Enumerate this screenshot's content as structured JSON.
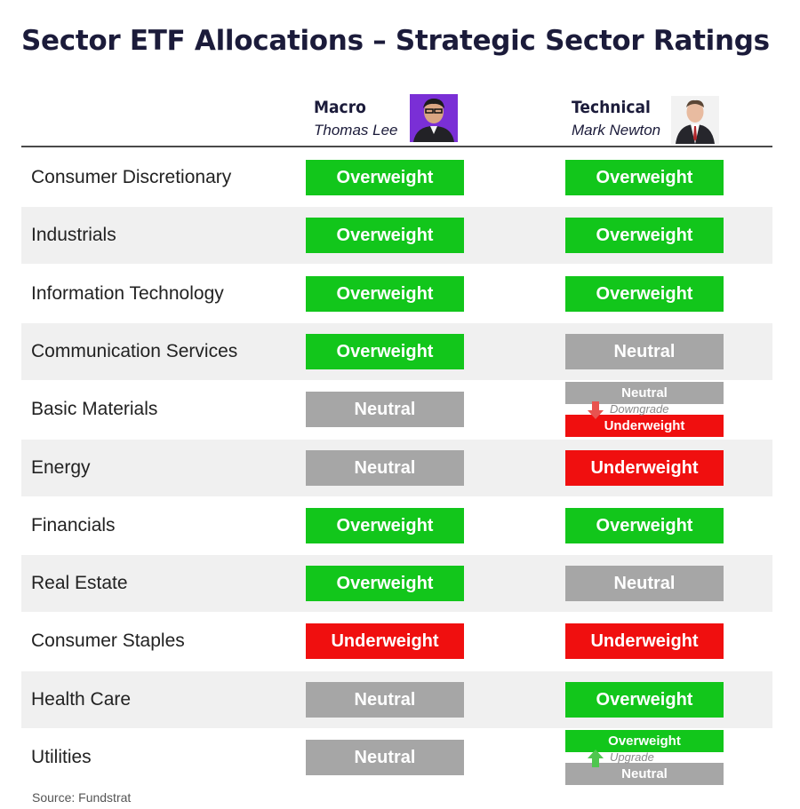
{
  "title": "Sector ETF Allocations – Strategic Sector Ratings",
  "columns": {
    "macro": {
      "role": "Macro",
      "person": "Thomas Lee"
    },
    "technical": {
      "role": "Technical",
      "person": "Mark Newton"
    }
  },
  "colors": {
    "Overweight": "#12c61b",
    "Neutral": "#a6a6a6",
    "Underweight": "#f00f0f",
    "downgrade_arrow": "#e8534f",
    "upgrade_arrow": "#4fc64f"
  },
  "rows": [
    {
      "sector": "Consumer Discretionary",
      "macro": "Overweight",
      "technical": "Overweight"
    },
    {
      "sector": "Industrials",
      "macro": "Overweight",
      "technical": "Overweight"
    },
    {
      "sector": "Information Technology",
      "macro": "Overweight",
      "technical": "Overweight"
    },
    {
      "sector": "Communication Services",
      "macro": "Overweight",
      "technical": "Neutral"
    },
    {
      "sector": "Basic Materials",
      "macro": "Neutral",
      "technical_change": {
        "from": "Neutral",
        "direction": "Downgrade",
        "to": "Underweight"
      }
    },
    {
      "sector": "Energy",
      "macro": "Neutral",
      "technical": "Underweight"
    },
    {
      "sector": "Financials",
      "macro": "Overweight",
      "technical": "Overweight"
    },
    {
      "sector": "Real Estate",
      "macro": "Overweight",
      "technical": "Neutral"
    },
    {
      "sector": "Consumer Staples",
      "macro": "Underweight",
      "technical": "Underweight"
    },
    {
      "sector": "Health Care",
      "macro": "Neutral",
      "technical": "Overweight"
    },
    {
      "sector": "Utilities",
      "macro": "Neutral",
      "technical_change": {
        "from": "Neutral",
        "direction": "Upgrade",
        "to": "Overweight"
      }
    }
  ],
  "source": "Source: Fundstrat"
}
